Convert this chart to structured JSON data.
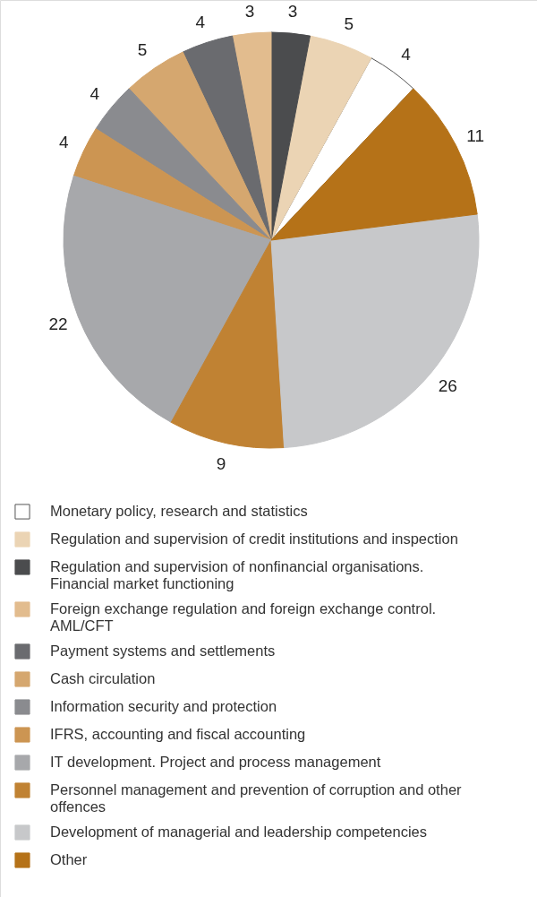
{
  "chart_data": {
    "type": "pie",
    "categories": [
      "Monetary policy, research and statistics",
      "Regulation and supervision of credit institutions and inspection",
      "Regulation and supervision of nonfinancial organisations. Financial market functioning",
      "Foreign exchange regulation and foreign exchange control. AML/CFT",
      "Payment systems and settlements",
      "Cash circulation",
      "Information security and protection",
      "IFRS, accounting and fiscal accounting",
      "IT development. Project and process management",
      "Personnel management and prevention of corruption and other offences",
      "Development of managerial and leadership competencies",
      "Other"
    ],
    "values": [
      4,
      5,
      3,
      3,
      4,
      5,
      4,
      4,
      22,
      9,
      26,
      11
    ],
    "colors": [
      "#ffffff",
      "#ebd4b4",
      "#4b4c4e",
      "#e2bc8e",
      "#6a6b6f",
      "#d5a76f",
      "#8a8b8f",
      "#cc9552",
      "#a7a8ab",
      "#c08233",
      "#c7c8ca",
      "#b57218"
    ],
    "data_labels": true,
    "legend": "bottom"
  }
}
